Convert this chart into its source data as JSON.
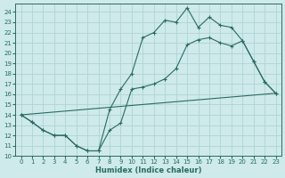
{
  "xlabel": "Humidex (Indice chaleur)",
  "background_color": "#ceeaea",
  "line_color": "#2a6b62",
  "grid_color": "#b0d4d4",
  "xlim": [
    -0.5,
    23.5
  ],
  "ylim": [
    10,
    24.8
  ],
  "xticks": [
    0,
    1,
    2,
    3,
    4,
    5,
    6,
    7,
    8,
    9,
    10,
    11,
    12,
    13,
    14,
    15,
    16,
    17,
    18,
    19,
    20,
    21,
    22,
    23
  ],
  "yticks": [
    10,
    11,
    12,
    13,
    14,
    15,
    16,
    17,
    18,
    19,
    20,
    21,
    22,
    23,
    24
  ],
  "line1_x": [
    0,
    1,
    2,
    3,
    4,
    5,
    6,
    7,
    8,
    9,
    10,
    11,
    12,
    13,
    14,
    15,
    16,
    17,
    18,
    19,
    20,
    21,
    22,
    23
  ],
  "line1_y": [
    14,
    13.3,
    12.5,
    12.0,
    12.0,
    11.0,
    10.5,
    10.5,
    14.5,
    16.5,
    18.0,
    21.5,
    22.0,
    23.2,
    23.0,
    24.4,
    22.5,
    23.5,
    22.7,
    22.5,
    21.2,
    19.2,
    17.2,
    16.1
  ],
  "line2_x": [
    0,
    1,
    2,
    3,
    4,
    5,
    6,
    7,
    8,
    9,
    10,
    11,
    12,
    13,
    14,
    15,
    16,
    17,
    18,
    19,
    20,
    21,
    22,
    23
  ],
  "line2_y": [
    14,
    13.3,
    12.5,
    12.0,
    12.0,
    11.0,
    10.5,
    10.5,
    12.5,
    13.2,
    16.5,
    16.7,
    17.0,
    17.5,
    18.5,
    20.8,
    21.3,
    21.5,
    21.0,
    20.7,
    21.2,
    19.2,
    17.2,
    16.1
  ],
  "line3_x": [
    0,
    23
  ],
  "line3_y": [
    14.0,
    16.1
  ]
}
